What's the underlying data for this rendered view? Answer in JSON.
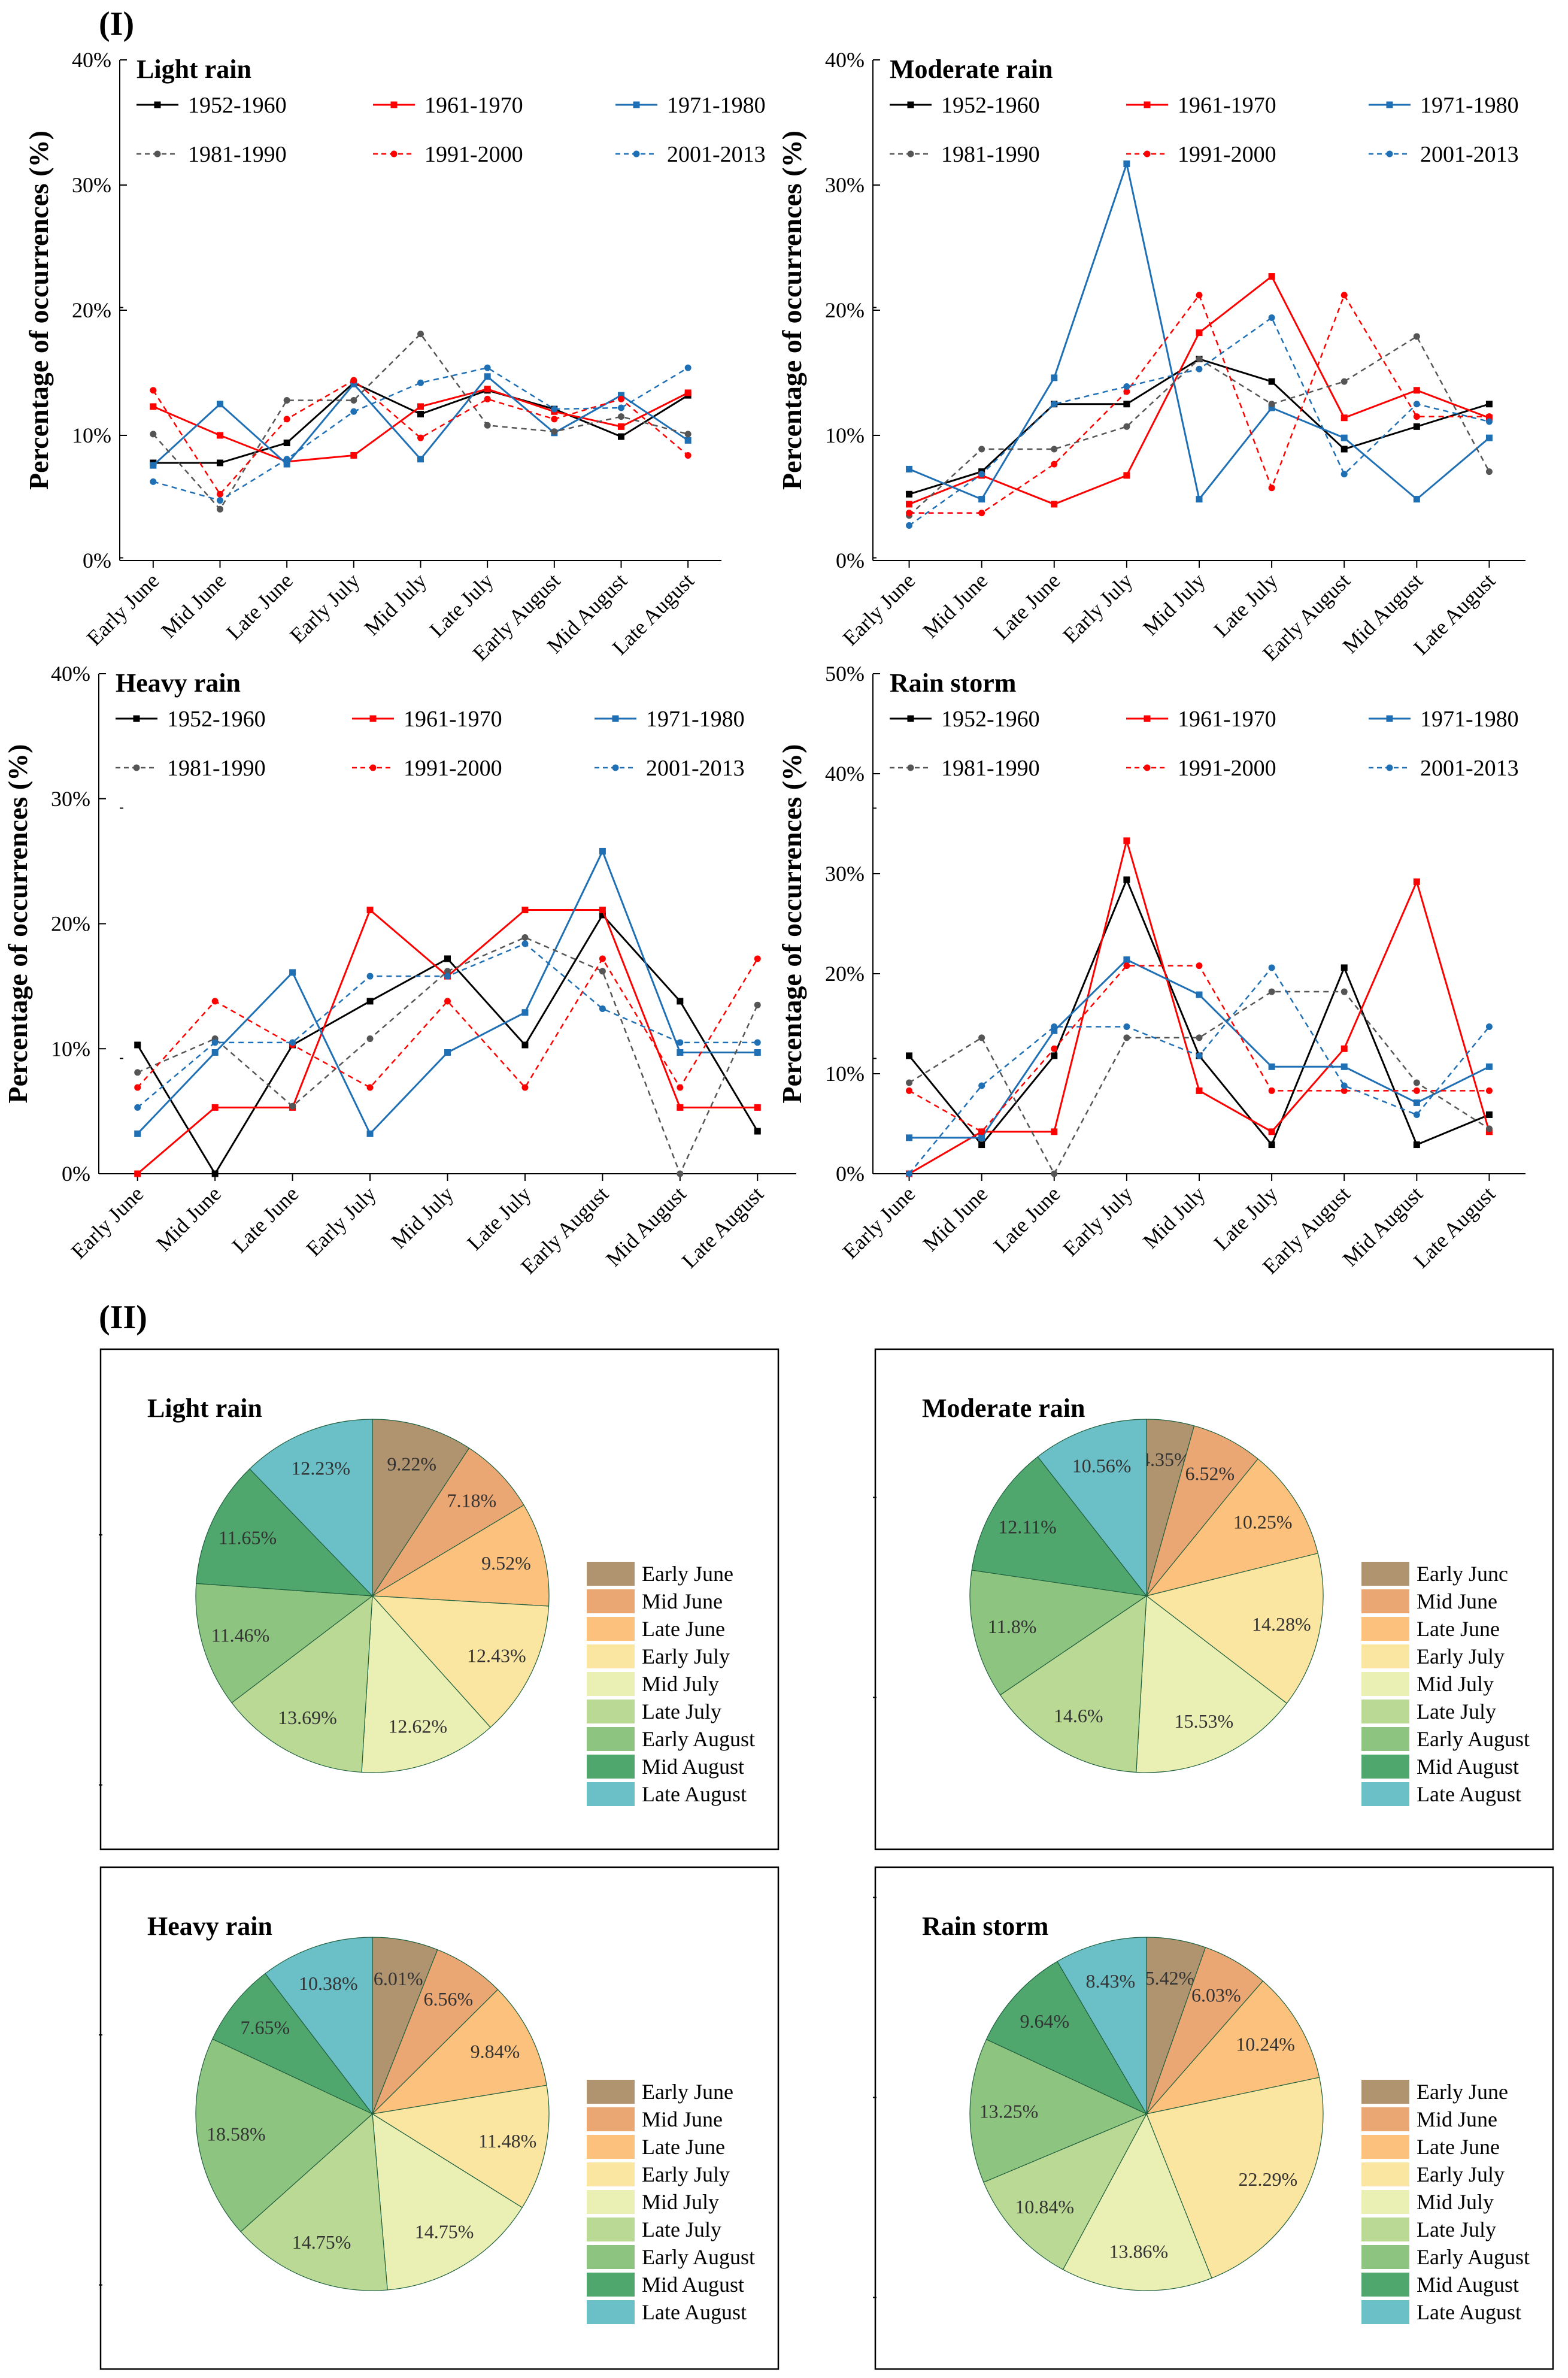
{
  "figure": {
    "section_labels": [
      "(I)",
      "(II)"
    ],
    "y_axis_label": "Percentage of occurrences (%)",
    "x_categories": [
      "Early June",
      "Mid June",
      "Late June",
      "Early July",
      "Mid July",
      "Late July",
      "Early August",
      "Mid August",
      "Late August"
    ],
    "series_styles": [
      {
        "name": "1952-1960",
        "color": "#000000",
        "dashed": false
      },
      {
        "name": "1961-1970",
        "color": "#ff0000",
        "dashed": false
      },
      {
        "name": "1971-1980",
        "color": "#1f6fb5",
        "dashed": false
      },
      {
        "name": "1981-1990",
        "color": "#555555",
        "dashed": true
      },
      {
        "name": "1991-2000",
        "color": "#ff0000",
        "dashed": true
      },
      {
        "name": "2001-2013",
        "color": "#1f6fb5",
        "dashed": true
      }
    ],
    "pie_colors": [
      "#b0936f",
      "#eaa774",
      "#fbc17d",
      "#fbe6a1",
      "#eaf0b4",
      "#bad994",
      "#8dc47f",
      "#4fa76d",
      "#6bbfc7"
    ]
  },
  "chart_data": [
    {
      "type": "line",
      "title": "Light rain",
      "xlabel": "",
      "ylabel": "Percentage of occurrences (%)",
      "ylim": [
        0,
        40
      ],
      "yticks": [
        "0%",
        "10%",
        "20%",
        "30%",
        "40%"
      ],
      "categories": [
        "Early June",
        "Mid June",
        "Late June",
        "Early July",
        "Mid July",
        "Late July",
        "Early August",
        "Mid August",
        "Late August"
      ],
      "series": [
        {
          "name": "1952-1960",
          "values": [
            7.8,
            7.8,
            9.4,
            14.2,
            11.7,
            13.6,
            12.1,
            9.9,
            13.2
          ]
        },
        {
          "name": "1961-1970",
          "values": [
            12.3,
            10.0,
            7.9,
            8.4,
            12.3,
            13.7,
            11.9,
            10.7,
            13.4
          ]
        },
        {
          "name": "1971-1980",
          "values": [
            7.6,
            12.5,
            7.7,
            14.1,
            8.1,
            14.7,
            10.2,
            13.2,
            9.6
          ]
        },
        {
          "name": "1981-1990",
          "values": [
            10.1,
            4.1,
            12.8,
            12.8,
            18.1,
            10.8,
            10.3,
            11.5,
            10.1
          ]
        },
        {
          "name": "1991-2000",
          "values": [
            13.6,
            5.3,
            11.3,
            14.4,
            9.8,
            12.9,
            11.3,
            12.9,
            8.4
          ]
        },
        {
          "name": "2001-2013",
          "values": [
            6.3,
            4.8,
            8.1,
            11.9,
            14.2,
            15.4,
            12.1,
            12.2,
            15.4
          ]
        }
      ]
    },
    {
      "type": "line",
      "title": "Moderate rain",
      "xlabel": "",
      "ylabel": "Percentage of occurrences (%)",
      "ylim": [
        0,
        40
      ],
      "yticks": [
        "0%",
        "10%",
        "20%",
        "30%",
        "40%"
      ],
      "categories": [
        "Early June",
        "Mid June",
        "Late June",
        "Early July",
        "Mid July",
        "Late July",
        "Early August",
        "Mid August",
        "Late August"
      ],
      "series": [
        {
          "name": "1952-1960",
          "values": [
            5.3,
            7.1,
            12.5,
            12.5,
            16.1,
            14.3,
            8.9,
            10.7,
            12.5
          ]
        },
        {
          "name": "1961-1970",
          "values": [
            4.5,
            6.8,
            4.5,
            6.8,
            18.2,
            22.7,
            11.4,
            13.6,
            11.4
          ]
        },
        {
          "name": "1971-1980",
          "values": [
            7.3,
            4.9,
            14.6,
            31.7,
            4.9,
            12.2,
            9.8,
            4.9,
            9.8
          ]
        },
        {
          "name": "1981-1990",
          "values": [
            3.6,
            8.9,
            8.9,
            10.7,
            16.1,
            12.5,
            14.3,
            17.9,
            7.1
          ]
        },
        {
          "name": "1991-2000",
          "values": [
            3.8,
            3.8,
            7.7,
            13.5,
            21.2,
            5.8,
            21.2,
            11.5,
            11.5
          ]
        },
        {
          "name": "2001-2013",
          "values": [
            2.8,
            6.9,
            12.5,
            13.9,
            15.3,
            19.4,
            6.9,
            12.5,
            11.1
          ]
        }
      ]
    },
    {
      "type": "line",
      "title": "Heavy rain",
      "xlabel": "",
      "ylabel": "Percentage of occurrences (%)",
      "ylim": [
        0,
        40
      ],
      "yticks": [
        "0%",
        "10%",
        "20%",
        "30%",
        "40%"
      ],
      "categories": [
        "Early June",
        "Mid June",
        "Late June",
        "Early July",
        "Mid July",
        "Late July",
        "Early August",
        "Mid August",
        "Late August"
      ],
      "series": [
        {
          "name": "1952-1960",
          "values": [
            10.3,
            0.0,
            10.3,
            13.8,
            17.2,
            10.3,
            20.7,
            13.8,
            3.4
          ]
        },
        {
          "name": "1961-1970",
          "values": [
            0.0,
            5.3,
            5.3,
            21.1,
            15.8,
            21.1,
            21.1,
            5.3,
            5.3
          ]
        },
        {
          "name": "1971-1980",
          "values": [
            3.2,
            9.7,
            16.1,
            3.2,
            9.7,
            12.9,
            25.8,
            9.7,
            9.7
          ]
        },
        {
          "name": "1981-1990",
          "values": [
            8.1,
            10.8,
            5.4,
            10.8,
            16.2,
            18.9,
            16.2,
            0.0,
            13.5
          ]
        },
        {
          "name": "1991-2000",
          "values": [
            6.9,
            13.8,
            10.3,
            6.9,
            13.8,
            6.9,
            17.2,
            6.9,
            17.2
          ]
        },
        {
          "name": "2001-2013",
          "values": [
            5.3,
            10.5,
            10.5,
            15.8,
            15.8,
            18.4,
            13.2,
            10.5,
            10.5
          ]
        }
      ]
    },
    {
      "type": "line",
      "title": "Rain storm",
      "xlabel": "",
      "ylabel": "Percentage of occurrences (%)",
      "ylim": [
        0,
        50
      ],
      "yticks": [
        "0%",
        "10%",
        "20%",
        "30%",
        "40%",
        "50%"
      ],
      "categories": [
        "Early June",
        "Mid June",
        "Late June",
        "Early July",
        "Mid July",
        "Late July",
        "Early August",
        "Mid August",
        "Late August"
      ],
      "series": [
        {
          "name": "1952-1960",
          "values": [
            11.8,
            2.9,
            11.8,
            29.4,
            11.8,
            2.9,
            20.6,
            2.9,
            5.9
          ]
        },
        {
          "name": "1961-1970",
          "values": [
            0.0,
            4.2,
            4.2,
            33.3,
            8.3,
            4.2,
            12.5,
            29.2,
            4.2
          ]
        },
        {
          "name": "1971-1980",
          "values": [
            3.6,
            3.6,
            14.3,
            21.4,
            17.9,
            10.7,
            10.7,
            7.1,
            10.7
          ]
        },
        {
          "name": "1981-1990",
          "values": [
            9.1,
            13.6,
            0.0,
            13.6,
            13.6,
            18.2,
            18.2,
            9.1,
            4.5
          ]
        },
        {
          "name": "1991-2000",
          "values": [
            8.3,
            4.2,
            12.5,
            20.8,
            20.8,
            8.3,
            8.3,
            8.3,
            8.3
          ]
        },
        {
          "name": "2001-2013",
          "values": [
            0.0,
            8.8,
            14.7,
            14.7,
            11.8,
            20.6,
            8.8,
            5.9,
            14.7
          ]
        }
      ]
    },
    {
      "type": "pie",
      "title": "Light rain",
      "categories": [
        "Early June",
        "Mid June",
        "Late June",
        "Early July",
        "Mid July",
        "Late July",
        "Early August",
        "Mid August",
        "Late August"
      ],
      "values": [
        9.22,
        7.18,
        9.52,
        12.43,
        12.62,
        13.69,
        11.46,
        11.65,
        12.23
      ],
      "labels": [
        "9.22%",
        "7.18%",
        "9.52%",
        "12.43%",
        "12.62%",
        "13.69%",
        "11.46%",
        "11.65%",
        "12.23%"
      ]
    },
    {
      "type": "pie",
      "title": "Moderate rain",
      "categories": [
        "Early Junc",
        "Mid June",
        "Late June",
        "Early July",
        "Mid July",
        "Late July",
        "Early August",
        "Mid August",
        "Late August"
      ],
      "values": [
        4.35,
        6.52,
        10.25,
        14.28,
        15.53,
        14.6,
        11.8,
        12.11,
        10.56
      ],
      "labels": [
        "4.35%",
        "6.52%",
        "10.25%",
        "14.28%",
        "15.53%",
        "14.6%",
        "11.8%",
        "12.11%",
        "10.56%"
      ]
    },
    {
      "type": "pie",
      "title": "Heavy rain",
      "categories": [
        "Early June",
        "Mid June",
        "Late June",
        "Early July",
        "Mid July",
        "Late July",
        "Early August",
        "Mid August",
        "Late August"
      ],
      "values": [
        6.01,
        6.56,
        9.84,
        11.48,
        14.75,
        14.75,
        18.58,
        7.65,
        10.38
      ],
      "labels": [
        "6.01%",
        "6.56%",
        "9.84%",
        "11.48%",
        "14.75%",
        "14.75%",
        "18.58%",
        "7.65%",
        "10.38%"
      ]
    },
    {
      "type": "pie",
      "title": "Rain storm",
      "categories": [
        "Early June",
        "Mid June",
        "Late June",
        "Early July",
        "Mid July",
        "Late July",
        "Early August",
        "Mid August",
        "Late August"
      ],
      "values": [
        5.42,
        6.03,
        10.24,
        22.29,
        13.86,
        10.84,
        13.25,
        9.64,
        8.43
      ],
      "labels": [
        "5.42%",
        "6.03%",
        "10.24%",
        "22.29%",
        "13.86%",
        "10.84%",
        "13.25%",
        "9.64%",
        "8.43%"
      ]
    }
  ]
}
